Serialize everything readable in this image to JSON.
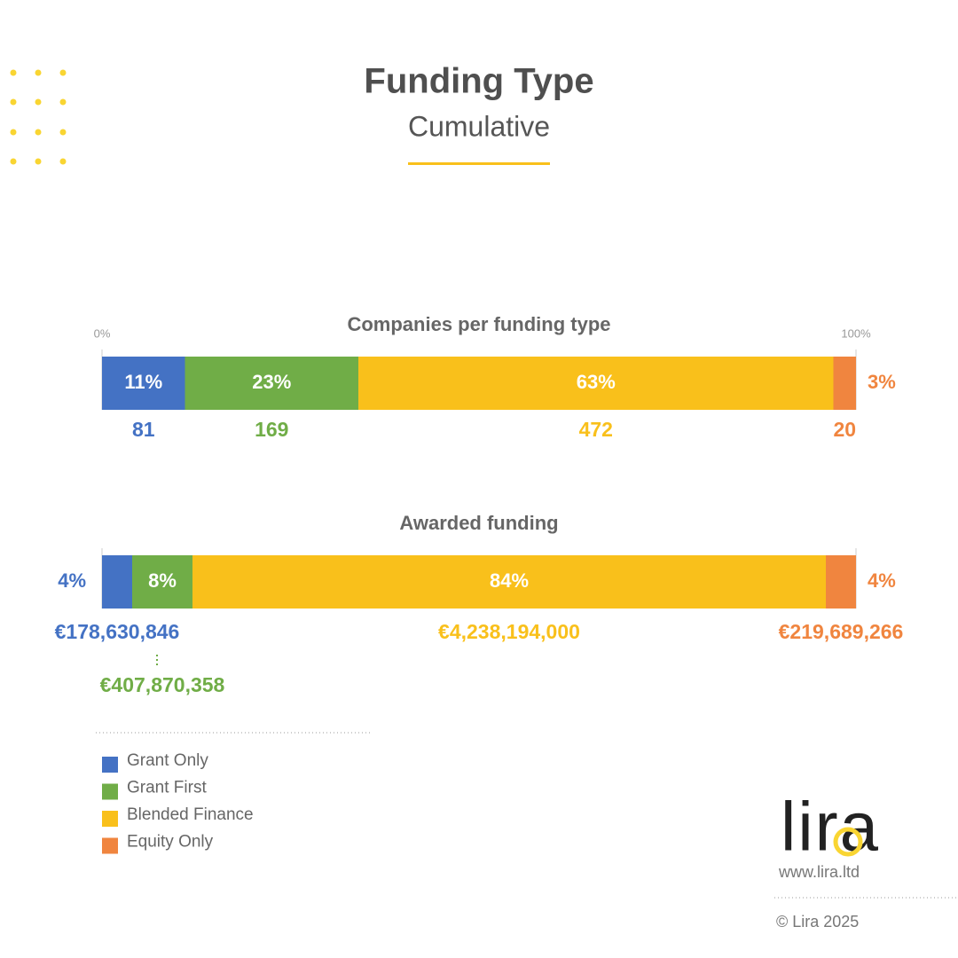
{
  "header": {
    "title": "Funding Type",
    "subtitle": "Cumulative"
  },
  "legend": {
    "items": [
      {
        "name": "Grant Only",
        "color": "#4472c4"
      },
      {
        "name": "Grant First",
        "color": "#70ad47"
      },
      {
        "name": "Blended Finance",
        "color": "#f9c01b"
      },
      {
        "name": "Equity Only",
        "color": "#f0853f"
      }
    ]
  },
  "chart_data": [
    {
      "type": "stacked_bar",
      "title": "Companies per funding type",
      "xlim": [
        0,
        100
      ],
      "xticks": [
        {
          "value": 0,
          "label": "0%"
        },
        {
          "value": 100,
          "label": "100%"
        }
      ],
      "values": [
        11,
        23,
        63,
        3
      ],
      "value_labels": [
        "11%",
        "23%",
        "63%",
        "3%"
      ],
      "counts": [
        81,
        169,
        472,
        20
      ]
    },
    {
      "type": "stacked_bar",
      "title": "Awarded funding",
      "xlim": [
        0,
        100
      ],
      "values": [
        4,
        8,
        84,
        4
      ],
      "value_labels": [
        "4%",
        "8%",
        "84%",
        "4%"
      ],
      "amounts": [
        178630846,
        407870358,
        4238194000,
        219689266
      ],
      "amount_labels": [
        "€178,630,846",
        "€407,870,358",
        "€4,238,194,000",
        "€219,689,266"
      ]
    }
  ],
  "footer": {
    "logo": "lira",
    "url": "www.lira.ltd",
    "copyright": "© Lira 2025"
  }
}
